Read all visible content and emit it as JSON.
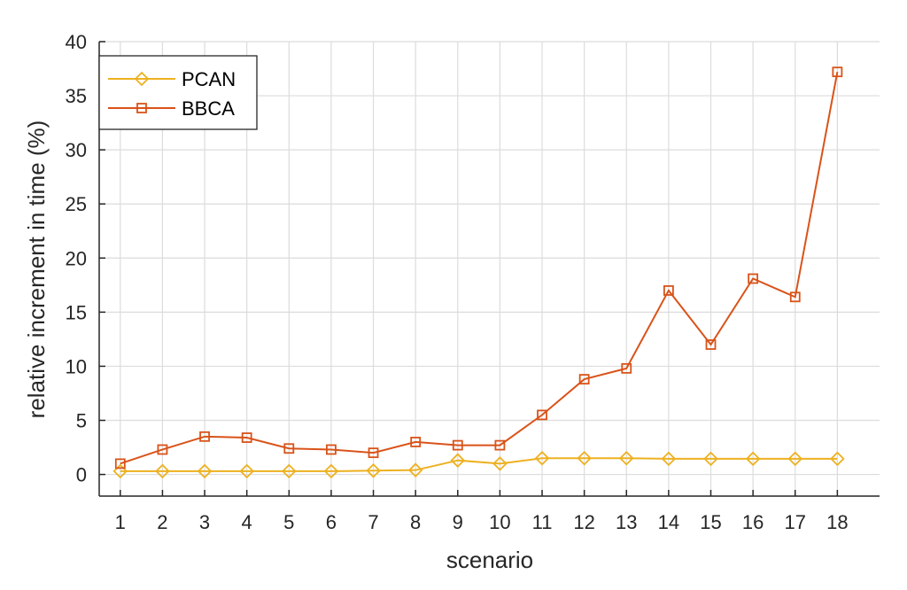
{
  "chart_data": {
    "type": "line",
    "title": "",
    "xlabel": "scenario",
    "ylabel": "relative increment in time (%)",
    "x": [
      1,
      2,
      3,
      4,
      5,
      6,
      7,
      8,
      9,
      10,
      11,
      12,
      13,
      14,
      15,
      16,
      17,
      18
    ],
    "xlim": [
      0.5,
      19
    ],
    "ylim": [
      -2,
      40
    ],
    "yticks": [
      0,
      5,
      10,
      15,
      20,
      25,
      30,
      35,
      40
    ],
    "grid": true,
    "legend_position": "top-left",
    "series": [
      {
        "name": "PCAN",
        "color": "#EDB120",
        "marker": "diamond",
        "values": [
          0.3,
          0.3,
          0.3,
          0.3,
          0.3,
          0.3,
          0.35,
          0.4,
          1.3,
          1.0,
          1.5,
          1.5,
          1.5,
          1.45,
          1.45,
          1.45,
          1.45,
          1.45
        ]
      },
      {
        "name": "BBCA",
        "color": "#D95319",
        "marker": "square",
        "values": [
          1.0,
          2.3,
          3.5,
          3.4,
          2.4,
          2.3,
          2.0,
          3.0,
          2.7,
          2.7,
          5.5,
          8.8,
          9.8,
          17.0,
          12.0,
          18.1,
          16.4,
          37.2
        ]
      }
    ]
  }
}
